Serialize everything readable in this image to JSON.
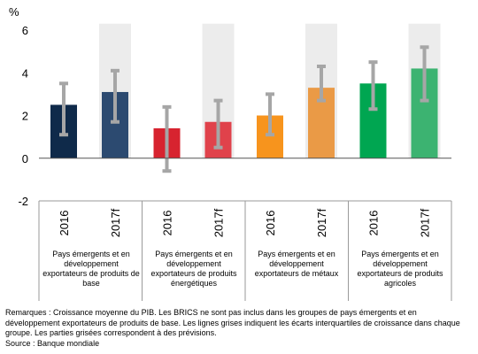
{
  "chart_data": {
    "type": "bar",
    "ylabel": "%",
    "ylim": [
      -2,
      6
    ],
    "yticks": [
      6,
      4,
      2,
      0,
      -2
    ],
    "grid": false,
    "series_colors": [
      "#0f2a4a",
      "#2c4a70",
      "#d7232f",
      "#e0424b",
      "#f7941d",
      "#ea9a46",
      "#00a651",
      "#3cb371"
    ],
    "forecast_shade_color": "#ececec",
    "range_bar_color": "#a6a6a6",
    "groups": [
      {
        "label": "Pays émergents et en développement exportateurs de produits de base",
        "bars": [
          {
            "year": "2016",
            "value": 2.5,
            "low": 1.1,
            "high": 3.5,
            "forecast": false,
            "color": "#0f2a4a"
          },
          {
            "year": "2017f",
            "value": 3.1,
            "low": 1.7,
            "high": 4.1,
            "forecast": true,
            "color": "#2c4a70"
          }
        ]
      },
      {
        "label": "Pays émergents et en développement exportateurs de produits énergétiques",
        "bars": [
          {
            "year": "2016",
            "value": 1.4,
            "low": -0.6,
            "high": 2.4,
            "forecast": false,
            "color": "#d7232f"
          },
          {
            "year": "2017f",
            "value": 1.7,
            "low": 0.5,
            "high": 2.7,
            "forecast": true,
            "color": "#e0424b"
          }
        ]
      },
      {
        "label": "Pays émergents et en développement exportateurs de métaux",
        "bars": [
          {
            "year": "2016",
            "value": 2.0,
            "low": 1.1,
            "high": 3.0,
            "forecast": false,
            "color": "#f7941d"
          },
          {
            "year": "2017f",
            "value": 3.3,
            "low": 2.7,
            "high": 4.3,
            "forecast": true,
            "color": "#ea9a46"
          }
        ]
      },
      {
        "label": "Pays émergents et en développement exportateurs de produits agricoles",
        "bars": [
          {
            "year": "2016",
            "value": 3.5,
            "low": 2.3,
            "high": 4.5,
            "forecast": false,
            "color": "#00a651"
          },
          {
            "year": "2017f",
            "value": 4.2,
            "low": 2.7,
            "high": 5.2,
            "forecast": true,
            "color": "#3cb371"
          }
        ]
      }
    ]
  },
  "notes": {
    "remarks": "Remarques : Croissance moyenne du PIB. Les BRICS ne sont pas inclus dans les groupes de pays émergents et en développement exportateurs de produits de base. Les lignes grises indiquent les écarts interquartiles de croissance dans chaque groupe. Les parties grisées correspondent à des prévisions.",
    "source": "Source : Banque mondiale"
  }
}
